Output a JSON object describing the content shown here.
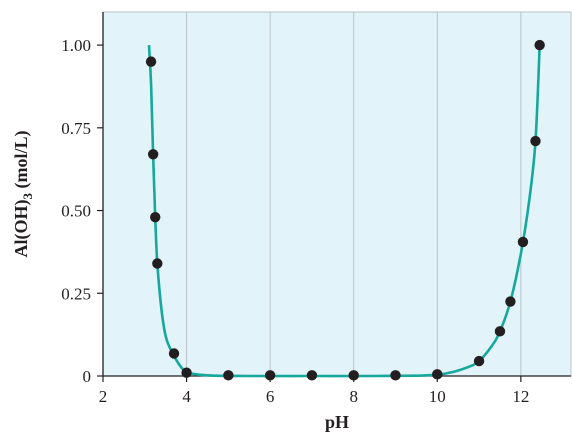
{
  "chart_data": {
    "type": "scatter",
    "title": "",
    "xlabel": "pH",
    "ylabel": "Al(OH)",
    "ylabel_subscript": "3",
    "ylabel_suffix": " (mol/L)",
    "xlim": [
      2,
      13.2
    ],
    "ylim": [
      0,
      1.1
    ],
    "xticks": [
      2,
      4,
      6,
      8,
      10,
      12
    ],
    "xtick_labels": [
      "2",
      "4",
      "6",
      "8",
      "10",
      "12"
    ],
    "yticks": [
      0,
      0.25,
      0.5,
      0.75,
      1.0
    ],
    "ytick_labels": [
      "0",
      "0.25",
      "0.50",
      "0.75",
      "1.00"
    ],
    "grid": "vertical",
    "colors": {
      "plot_background": "#e3f3fa",
      "gridline": "#b9c3c8",
      "curve": "#16a89c",
      "point": "#231f20",
      "axis": "#231f20"
    },
    "series": [
      {
        "points": [
          {
            "x": 3.15,
            "y": 0.95
          },
          {
            "x": 3.2,
            "y": 0.67
          },
          {
            "x": 3.25,
            "y": 0.48
          },
          {
            "x": 3.3,
            "y": 0.34
          },
          {
            "x": 3.7,
            "y": 0.068
          },
          {
            "x": 4.0,
            "y": 0.01
          },
          {
            "x": 5.0,
            "y": 0.002
          },
          {
            "x": 6.0,
            "y": 0.002
          },
          {
            "x": 7.0,
            "y": 0.002
          },
          {
            "x": 8.0,
            "y": 0.002
          },
          {
            "x": 9.0,
            "y": 0.002
          },
          {
            "x": 10.0,
            "y": 0.005
          },
          {
            "x": 11.0,
            "y": 0.045
          },
          {
            "x": 11.5,
            "y": 0.135
          },
          {
            "x": 11.75,
            "y": 0.225
          },
          {
            "x": 12.05,
            "y": 0.405
          },
          {
            "x": 12.35,
            "y": 0.71
          },
          {
            "x": 12.45,
            "y": 1.0
          }
        ]
      }
    ],
    "fit_curve": {
      "x": [
        3.1,
        3.15,
        3.2,
        3.25,
        3.3,
        3.4,
        3.5,
        3.6,
        3.7,
        3.85,
        4.0,
        4.3,
        4.7,
        5.5,
        7.0,
        8.5,
        9.5,
        10.0,
        10.4,
        10.8,
        11.0,
        11.3,
        11.5,
        11.75,
        12.0,
        12.2,
        12.35,
        12.45
      ],
      "y": [
        1.0,
        0.88,
        0.67,
        0.48,
        0.34,
        0.2,
        0.12,
        0.085,
        0.06,
        0.03,
        0.012,
        0.004,
        0.001,
        0.0,
        0.0,
        0.0,
        0.001,
        0.004,
        0.013,
        0.03,
        0.045,
        0.09,
        0.135,
        0.225,
        0.37,
        0.53,
        0.71,
        1.0
      ]
    }
  }
}
